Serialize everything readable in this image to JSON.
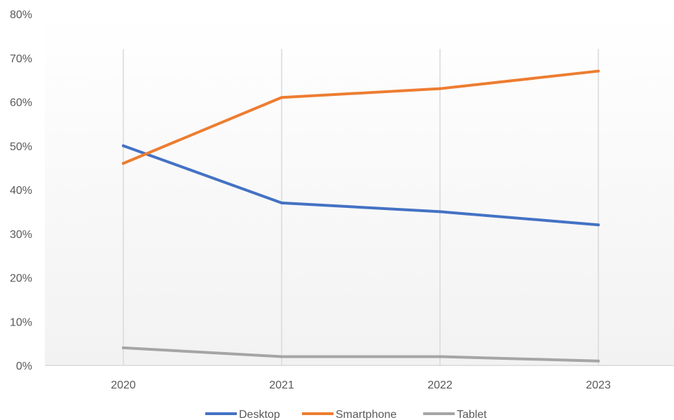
{
  "chart_data": {
    "type": "line",
    "categories": [
      "2020",
      "2021",
      "2022",
      "2023"
    ],
    "series": [
      {
        "name": "Desktop",
        "values": [
          50,
          37,
          35,
          32
        ],
        "color": "#4472C4"
      },
      {
        "name": "Smartphone",
        "values": [
          46,
          61,
          63,
          67
        ],
        "color": "#ED7D31"
      },
      {
        "name": "Tablet",
        "values": [
          4,
          2,
          2,
          1
        ],
        "color": "#A5A5A5"
      }
    ],
    "y_ticks": [
      "0%",
      "10%",
      "20%",
      "30%",
      "40%",
      "50%",
      "60%",
      "70%",
      "80%"
    ],
    "ylim": [
      0,
      80
    ],
    "y_unit": "%",
    "grid": {
      "vertical": true,
      "horizontal": false
    },
    "legend_position": "bottom",
    "background": "#F2F2F2",
    "title": "",
    "xlabel": "",
    "ylabel": ""
  }
}
